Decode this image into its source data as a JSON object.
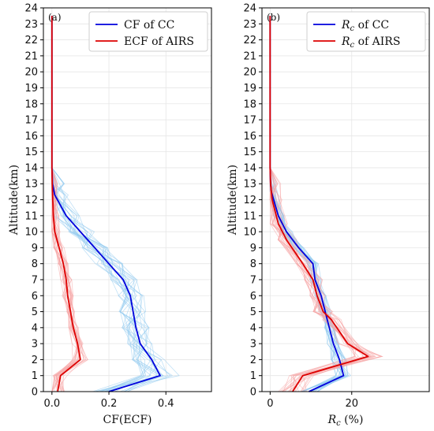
{
  "chart_data": [
    {
      "type": "line",
      "panel_label": "(a)",
      "xlabel": "CF(ECF)",
      "ylabel": "Altitude(km)",
      "xlim": [
        -0.03,
        0.56
      ],
      "ylim": [
        0,
        24
      ],
      "xticks": [
        0.0,
        0.2,
        0.4
      ],
      "xtick_labels": [
        "0.0",
        "0.2",
        "0.4"
      ],
      "yticks": [
        0,
        1,
        2,
        3,
        4,
        5,
        6,
        7,
        8,
        9,
        10,
        11,
        12,
        13,
        14,
        15,
        16,
        17,
        18,
        19,
        20,
        21,
        22,
        23,
        24
      ],
      "grid": true,
      "legend_position": "top-right",
      "series": [
        {
          "name": "CF of CC",
          "color": "#0000dd",
          "points": [
            [
              0.2,
              0
            ],
            [
              0.38,
              1
            ],
            [
              0.35,
              2
            ],
            [
              0.31,
              3
            ],
            [
              0.295,
              4
            ],
            [
              0.285,
              5
            ],
            [
              0.275,
              6
            ],
            [
              0.25,
              7
            ],
            [
              0.2,
              8
            ],
            [
              0.15,
              9
            ],
            [
              0.1,
              10
            ],
            [
              0.05,
              11
            ],
            [
              0.01,
              12.3
            ],
            [
              0.002,
              13
            ],
            [
              0.0,
              14
            ],
            [
              0.0,
              15
            ],
            [
              0.0,
              23.5
            ]
          ]
        },
        {
          "name": "ECF of AIRS",
          "color": "#dd0000",
          "points": [
            [
              0.02,
              0
            ],
            [
              0.03,
              1
            ],
            [
              0.1,
              2
            ],
            [
              0.09,
              3
            ],
            [
              0.075,
              4
            ],
            [
              0.065,
              5
            ],
            [
              0.055,
              6
            ],
            [
              0.05,
              7
            ],
            [
              0.04,
              8
            ],
            [
              0.025,
              9
            ],
            [
              0.01,
              10
            ],
            [
              0.005,
              11
            ],
            [
              0.003,
              12
            ],
            [
              0.001,
              13
            ],
            [
              0.0,
              14
            ],
            [
              0.0,
              15
            ],
            [
              0.0,
              23.5
            ]
          ]
        }
      ],
      "ensemble": [
        {
          "color": "#8ec8ee",
          "count": 22,
          "spread_x": 0.05,
          "follows": "CF of CC"
        },
        {
          "color": "#f5a3a3",
          "count": 22,
          "spread_x": 0.02,
          "follows": "ECF of AIRS"
        }
      ]
    },
    {
      "type": "line",
      "panel_label": "(b)",
      "xlabel": "R_c (%)",
      "xlabel_main": "R",
      "xlabel_sub": "c",
      "xlabel_suffix": " (%)",
      "ylabel": "Altitude(km)",
      "xlim": [
        -2,
        39
      ],
      "ylim": [
        0,
        24
      ],
      "xticks": [
        0,
        20
      ],
      "xtick_labels": [
        "0",
        "20"
      ],
      "yticks": [
        0,
        1,
        2,
        3,
        4,
        5,
        6,
        7,
        8,
        9,
        10,
        11,
        12,
        13,
        14,
        15,
        16,
        17,
        18,
        19,
        20,
        21,
        22,
        23,
        24
      ],
      "grid": true,
      "legend_position": "top-right",
      "series": [
        {
          "name": "R_c of CC",
          "legend_main": "R",
          "legend_sub": "c",
          "legend_suffix": "  of CC",
          "color": "#0000dd",
          "points": [
            [
              9.5,
              0
            ],
            [
              18,
              1
            ],
            [
              17,
              2
            ],
            [
              15.5,
              3
            ],
            [
              14.5,
              4
            ],
            [
              13.5,
              5
            ],
            [
              12.5,
              6
            ],
            [
              11,
              7
            ],
            [
              10.5,
              8
            ],
            [
              7,
              9
            ],
            [
              4,
              10
            ],
            [
              2,
              11
            ],
            [
              0.3,
              12.5
            ],
            [
              0.1,
              13
            ],
            [
              0.0,
              14
            ],
            [
              0.0,
              15
            ],
            [
              0.0,
              23.5
            ]
          ]
        },
        {
          "name": "R_c of AIRS",
          "legend_main": "R",
          "legend_sub": "c",
          "legend_suffix": "  of AIRS",
          "color": "#dd0000",
          "points": [
            [
              5.5,
              0
            ],
            [
              8,
              1
            ],
            [
              24,
              2.2
            ],
            [
              19,
              3
            ],
            [
              15,
              4.5
            ],
            [
              13,
              5
            ],
            [
              11.5,
              6
            ],
            [
              10.5,
              7
            ],
            [
              8,
              8
            ],
            [
              4,
              9.5
            ],
            [
              2,
              10.5
            ],
            [
              0.5,
              12
            ],
            [
              0.1,
              13
            ],
            [
              0.0,
              14
            ],
            [
              0.0,
              15
            ],
            [
              0.0,
              23.5
            ]
          ]
        }
      ],
      "ensemble": [
        {
          "color": "#8ec8ee",
          "count": 22,
          "spread_x": 1.5,
          "follows": "R_c of CC"
        },
        {
          "color": "#f5a3a3",
          "count": 22,
          "spread_x": 2.5,
          "follows": "R_c of AIRS"
        }
      ]
    }
  ]
}
